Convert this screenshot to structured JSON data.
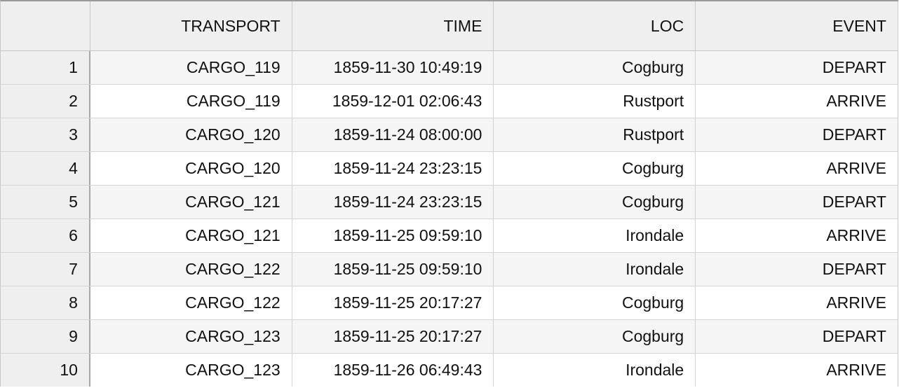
{
  "table": {
    "columns": [
      "",
      "TRANSPORT",
      "TIME",
      "LOC",
      "EVENT"
    ],
    "rows": [
      {
        "index": "1",
        "transport": "CARGO_119",
        "time": "1859-11-30 10:49:19",
        "loc": "Cogburg",
        "event": "DEPART"
      },
      {
        "index": "2",
        "transport": "CARGO_119",
        "time": "1859-12-01 02:06:43",
        "loc": "Rustport",
        "event": "ARRIVE"
      },
      {
        "index": "3",
        "transport": "CARGO_120",
        "time": "1859-11-24 08:00:00",
        "loc": "Rustport",
        "event": "DEPART"
      },
      {
        "index": "4",
        "transport": "CARGO_120",
        "time": "1859-11-24 23:23:15",
        "loc": "Cogburg",
        "event": "ARRIVE"
      },
      {
        "index": "5",
        "transport": "CARGO_121",
        "time": "1859-11-24 23:23:15",
        "loc": "Cogburg",
        "event": "DEPART"
      },
      {
        "index": "6",
        "transport": "CARGO_121",
        "time": "1859-11-25 09:59:10",
        "loc": "Irondale",
        "event": "ARRIVE"
      },
      {
        "index": "7",
        "transport": "CARGO_122",
        "time": "1859-11-25 09:59:10",
        "loc": "Irondale",
        "event": "DEPART"
      },
      {
        "index": "8",
        "transport": "CARGO_122",
        "time": "1859-11-25 20:17:27",
        "loc": "Cogburg",
        "event": "ARRIVE"
      },
      {
        "index": "9",
        "transport": "CARGO_123",
        "time": "1859-11-25 20:17:27",
        "loc": "Cogburg",
        "event": "DEPART"
      },
      {
        "index": "10",
        "transport": "CARGO_123",
        "time": "1859-11-26 06:49:43",
        "loc": "Irondale",
        "event": "ARRIVE"
      }
    ]
  }
}
